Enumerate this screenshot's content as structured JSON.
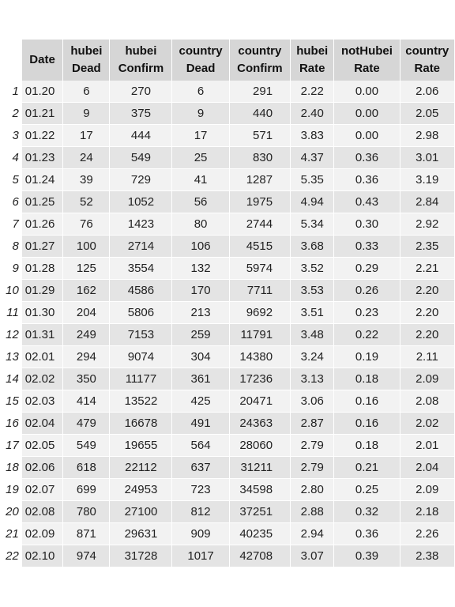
{
  "chart_data": {
    "type": "table",
    "columns": [
      {
        "key": "date",
        "label": [
          "Date"
        ]
      },
      {
        "key": "hubei_dead",
        "label": [
          "hubei",
          "Dead"
        ]
      },
      {
        "key": "hubei_confirm",
        "label": [
          "hubei",
          "Confirm"
        ]
      },
      {
        "key": "country_dead",
        "label": [
          "country",
          "Dead"
        ]
      },
      {
        "key": "country_confirm",
        "label": [
          "country",
          "Confirm"
        ]
      },
      {
        "key": "hubei_rate",
        "label": [
          "hubei",
          "Rate"
        ]
      },
      {
        "key": "nothubei_rate",
        "label": [
          "notHubei",
          "Rate"
        ]
      },
      {
        "key": "country_rate",
        "label": [
          "country",
          "Rate"
        ]
      }
    ],
    "rows": [
      {
        "idx": "1",
        "cells": [
          "01.20",
          "6",
          "270",
          "6",
          "291",
          "2.22",
          "0.00",
          "2.06"
        ]
      },
      {
        "idx": "2",
        "cells": [
          "01.21",
          "9",
          "375",
          "9",
          "440",
          "2.40",
          "0.00",
          "2.05"
        ]
      },
      {
        "idx": "3",
        "cells": [
          "01.22",
          "17",
          "444",
          "17",
          "571",
          "3.83",
          "0.00",
          "2.98"
        ]
      },
      {
        "idx": "4",
        "cells": [
          "01.23",
          "24",
          "549",
          "25",
          "830",
          "4.37",
          "0.36",
          "3.01"
        ]
      },
      {
        "idx": "5",
        "cells": [
          "01.24",
          "39",
          "729",
          "41",
          "1287",
          "5.35",
          "0.36",
          "3.19"
        ]
      },
      {
        "idx": "6",
        "cells": [
          "01.25",
          "52",
          "1052",
          "56",
          "1975",
          "4.94",
          "0.43",
          "2.84"
        ]
      },
      {
        "idx": "7",
        "cells": [
          "01.26",
          "76",
          "1423",
          "80",
          "2744",
          "5.34",
          "0.30",
          "2.92"
        ]
      },
      {
        "idx": "8",
        "cells": [
          "01.27",
          "100",
          "2714",
          "106",
          "4515",
          "3.68",
          "0.33",
          "2.35"
        ]
      },
      {
        "idx": "9",
        "cells": [
          "01.28",
          "125",
          "3554",
          "132",
          "5974",
          "3.52",
          "0.29",
          "2.21"
        ]
      },
      {
        "idx": "10",
        "cells": [
          "01.29",
          "162",
          "4586",
          "170",
          "7711",
          "3.53",
          "0.26",
          "2.20"
        ]
      },
      {
        "idx": "11",
        "cells": [
          "01.30",
          "204",
          "5806",
          "213",
          "9692",
          "3.51",
          "0.23",
          "2.20"
        ]
      },
      {
        "idx": "12",
        "cells": [
          "01.31",
          "249",
          "7153",
          "259",
          "11791",
          "3.48",
          "0.22",
          "2.20"
        ]
      },
      {
        "idx": "13",
        "cells": [
          "02.01",
          "294",
          "9074",
          "304",
          "14380",
          "3.24",
          "0.19",
          "2.11"
        ]
      },
      {
        "idx": "14",
        "cells": [
          "02.02",
          "350",
          "11177",
          "361",
          "17236",
          "3.13",
          "0.18",
          "2.09"
        ]
      },
      {
        "idx": "15",
        "cells": [
          "02.03",
          "414",
          "13522",
          "425",
          "20471",
          "3.06",
          "0.16",
          "2.08"
        ]
      },
      {
        "idx": "16",
        "cells": [
          "02.04",
          "479",
          "16678",
          "491",
          "24363",
          "2.87",
          "0.16",
          "2.02"
        ]
      },
      {
        "idx": "17",
        "cells": [
          "02.05",
          "549",
          "19655",
          "564",
          "28060",
          "2.79",
          "0.18",
          "2.01"
        ]
      },
      {
        "idx": "18",
        "cells": [
          "02.06",
          "618",
          "22112",
          "637",
          "31211",
          "2.79",
          "0.21",
          "2.04"
        ]
      },
      {
        "idx": "19",
        "cells": [
          "02.07",
          "699",
          "24953",
          "723",
          "34598",
          "2.80",
          "0.25",
          "2.09"
        ]
      },
      {
        "idx": "20",
        "cells": [
          "02.08",
          "780",
          "27100",
          "812",
          "37251",
          "2.88",
          "0.32",
          "2.18"
        ]
      },
      {
        "idx": "21",
        "cells": [
          "02.09",
          "871",
          "29631",
          "909",
          "40235",
          "2.94",
          "0.36",
          "2.26"
        ]
      },
      {
        "idx": "22",
        "cells": [
          "02.10",
          "974",
          "31728",
          "1017",
          "42708",
          "3.07",
          "0.39",
          "2.38"
        ]
      }
    ]
  }
}
